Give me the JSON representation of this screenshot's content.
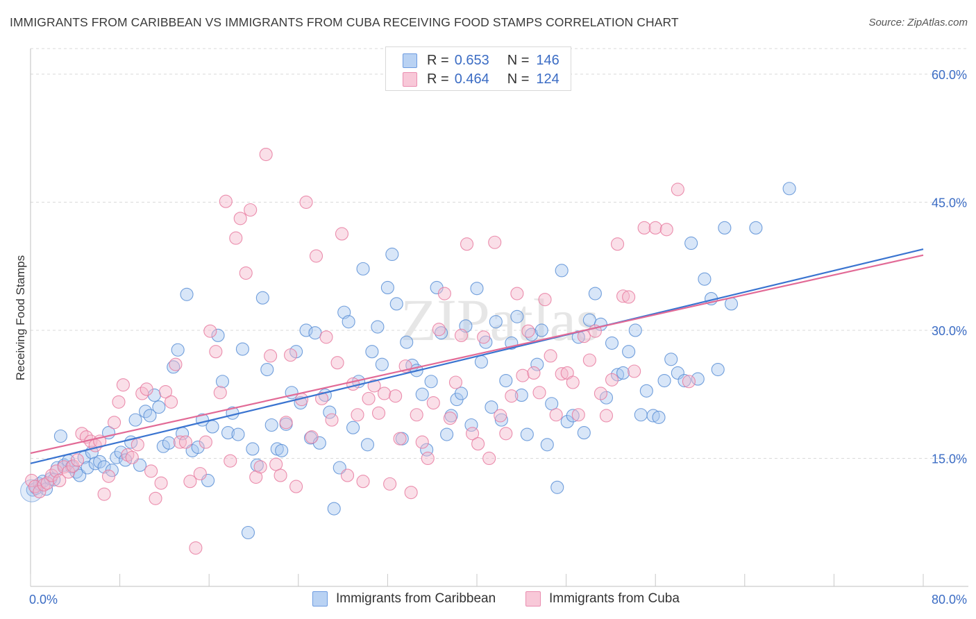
{
  "header": {
    "title": "IMMIGRANTS FROM CARIBBEAN VS IMMIGRANTS FROM CUBA RECEIVING FOOD STAMPS CORRELATION CHART",
    "source": "Source: ZipAtlas.com"
  },
  "legend": {
    "rows": [
      {
        "r_label": "R =",
        "r_value": "0.653",
        "n_label": "N =",
        "n_value": "146"
      },
      {
        "r_label": "R =",
        "r_value": "0.464",
        "n_label": "N =",
        "n_value": "124"
      }
    ]
  },
  "watermark": "ZIPatlas",
  "chart_data": {
    "type": "scatter",
    "title": "IMMIGRANTS FROM CARIBBEAN VS IMMIGRANTS FROM CUBA RECEIVING FOOD STAMPS CORRELATION CHART",
    "xlabel": "",
    "ylabel": "Receiving Food Stamps",
    "xlim": [
      0,
      80
    ],
    "ylim": [
      0,
      63
    ],
    "x_tick_labels": [
      "0.0%",
      "80.0%"
    ],
    "y_ticks": [
      15,
      30,
      45,
      60
    ],
    "y_tick_labels": [
      "15.0%",
      "30.0%",
      "45.0%",
      "60.0%"
    ],
    "grid": true,
    "legend_position": "top-center",
    "colors": {
      "caribbean_fill": "#a8c8f0",
      "caribbean_stroke": "#5b8fd6",
      "caribbean_line": "#3a74d0",
      "cuba_fill": "#f5b8cc",
      "cuba_stroke": "#e87ba0",
      "cuba_line": "#e26a96",
      "tick_label": "#3b6cc4"
    },
    "series": [
      {
        "name": "Immigrants from Caribbean",
        "r": 0.653,
        "n": 146,
        "trend": {
          "x0": 0,
          "y0": 14.4,
          "x1": 80,
          "y1": 39.5
        },
        "points": [
          [
            0.2,
            11.3
          ],
          [
            0.5,
            11.5
          ],
          [
            0.8,
            12.0
          ],
          [
            1.1,
            12.3
          ],
          [
            1.4,
            11.4
          ],
          [
            1.8,
            12.6
          ],
          [
            2.1,
            12.5
          ],
          [
            2.4,
            13.9
          ],
          [
            2.7,
            17.6
          ],
          [
            3.0,
            14.2
          ],
          [
            3.4,
            14.7
          ],
          [
            3.7,
            14.0
          ],
          [
            4.1,
            13.4
          ],
          [
            4.4,
            13.0
          ],
          [
            4.8,
            15.1
          ],
          [
            5.1,
            13.9
          ],
          [
            5.5,
            15.7
          ],
          [
            5.8,
            14.4
          ],
          [
            6.2,
            14.6
          ],
          [
            6.6,
            14.0
          ],
          [
            7.0,
            18.0
          ],
          [
            7.3,
            13.6
          ],
          [
            7.7,
            15.1
          ],
          [
            8.1,
            15.7
          ],
          [
            8.5,
            14.8
          ],
          [
            9.0,
            16.9
          ],
          [
            9.4,
            19.5
          ],
          [
            9.8,
            14.2
          ],
          [
            10.3,
            20.5
          ],
          [
            10.7,
            20.0
          ],
          [
            11.1,
            22.4
          ],
          [
            11.5,
            21.0
          ],
          [
            11.9,
            16.4
          ],
          [
            12.4,
            16.8
          ],
          [
            12.8,
            25.7
          ],
          [
            13.2,
            27.7
          ],
          [
            13.6,
            17.9
          ],
          [
            14.0,
            34.2
          ],
          [
            14.5,
            15.9
          ],
          [
            15.0,
            16.3
          ],
          [
            15.4,
            19.5
          ],
          [
            15.9,
            12.4
          ],
          [
            16.3,
            18.7
          ],
          [
            16.8,
            29.4
          ],
          [
            17.2,
            24.0
          ],
          [
            17.7,
            18.0
          ],
          [
            18.1,
            20.3
          ],
          [
            18.6,
            17.8
          ],
          [
            19.0,
            27.8
          ],
          [
            19.5,
            6.3
          ],
          [
            19.9,
            16.1
          ],
          [
            20.3,
            14.2
          ],
          [
            20.8,
            33.8
          ],
          [
            21.2,
            25.4
          ],
          [
            21.6,
            18.9
          ],
          [
            22.1,
            16.1
          ],
          [
            22.5,
            15.9
          ],
          [
            22.9,
            19.0
          ],
          [
            23.4,
            22.7
          ],
          [
            23.8,
            27.5
          ],
          [
            24.2,
            21.5
          ],
          [
            24.7,
            30.0
          ],
          [
            25.1,
            17.4
          ],
          [
            25.5,
            29.7
          ],
          [
            25.9,
            16.8
          ],
          [
            26.4,
            22.4
          ],
          [
            26.8,
            20.4
          ],
          [
            27.2,
            9.1
          ],
          [
            27.7,
            13.9
          ],
          [
            28.1,
            32.1
          ],
          [
            28.5,
            31.0
          ],
          [
            28.9,
            18.6
          ],
          [
            29.4,
            24.0
          ],
          [
            29.8,
            37.2
          ],
          [
            30.2,
            16.6
          ],
          [
            30.6,
            27.5
          ],
          [
            31.1,
            30.4
          ],
          [
            31.5,
            26.0
          ],
          [
            32.0,
            35.0
          ],
          [
            32.4,
            38.9
          ],
          [
            32.8,
            33.1
          ],
          [
            33.3,
            17.3
          ],
          [
            33.7,
            28.6
          ],
          [
            34.2,
            25.9
          ],
          [
            34.6,
            25.3
          ],
          [
            35.1,
            22.5
          ],
          [
            35.5,
            16.0
          ],
          [
            35.9,
            24.0
          ],
          [
            36.4,
            35.0
          ],
          [
            36.8,
            29.7
          ],
          [
            37.3,
            17.8
          ],
          [
            37.7,
            20.0
          ],
          [
            38.2,
            21.9
          ],
          [
            38.6,
            22.6
          ],
          [
            39.0,
            30.5
          ],
          [
            39.5,
            18.9
          ],
          [
            40.0,
            34.9
          ],
          [
            40.4,
            26.3
          ],
          [
            40.8,
            28.6
          ],
          [
            41.3,
            21.0
          ],
          [
            41.7,
            31.0
          ],
          [
            42.2,
            19.5
          ],
          [
            42.6,
            24.1
          ],
          [
            43.1,
            28.5
          ],
          [
            43.6,
            31.6
          ],
          [
            44.0,
            22.4
          ],
          [
            44.5,
            17.8
          ],
          [
            44.9,
            29.5
          ],
          [
            45.4,
            26.0
          ],
          [
            45.8,
            30.0
          ],
          [
            46.3,
            16.6
          ],
          [
            46.7,
            21.4
          ],
          [
            47.2,
            11.6
          ],
          [
            47.6,
            37.0
          ],
          [
            48.1,
            19.3
          ],
          [
            48.6,
            20.0
          ],
          [
            49.1,
            29.2
          ],
          [
            49.6,
            18.0
          ],
          [
            50.1,
            31.2
          ],
          [
            50.6,
            34.3
          ],
          [
            51.1,
            30.7
          ],
          [
            51.6,
            22.1
          ],
          [
            52.1,
            28.5
          ],
          [
            52.6,
            24.8
          ],
          [
            53.1,
            25.0
          ],
          [
            53.6,
            27.5
          ],
          [
            54.2,
            30.0
          ],
          [
            54.7,
            20.1
          ],
          [
            55.2,
            22.9
          ],
          [
            55.8,
            20.0
          ],
          [
            56.3,
            19.8
          ],
          [
            56.8,
            24.1
          ],
          [
            57.4,
            26.6
          ],
          [
            58.0,
            25.0
          ],
          [
            58.6,
            24.1
          ],
          [
            59.2,
            40.2
          ],
          [
            59.8,
            24.3
          ],
          [
            60.4,
            36.0
          ],
          [
            61.0,
            33.7
          ],
          [
            61.6,
            25.4
          ],
          [
            62.2,
            42.0
          ],
          [
            62.8,
            33.1
          ],
          [
            65.0,
            42.0
          ],
          [
            68.0,
            46.6
          ]
        ]
      },
      {
        "name": "Immigrants from Cuba",
        "r": 0.464,
        "n": 124,
        "trend": {
          "x0": 0,
          "y0": 15.6,
          "x1": 80,
          "y1": 38.8
        },
        "points": [
          [
            0.1,
            12.4
          ],
          [
            0.4,
            11.7
          ],
          [
            0.8,
            11.1
          ],
          [
            1.2,
            11.9
          ],
          [
            1.5,
            12.1
          ],
          [
            1.9,
            13.0
          ],
          [
            2.3,
            13.5
          ],
          [
            2.6,
            12.4
          ],
          [
            3.0,
            14.0
          ],
          [
            3.4,
            13.4
          ],
          [
            3.8,
            14.1
          ],
          [
            4.2,
            14.8
          ],
          [
            4.6,
            17.9
          ],
          [
            5.0,
            17.5
          ],
          [
            5.4,
            17.0
          ],
          [
            5.8,
            16.5
          ],
          [
            6.2,
            17.0
          ],
          [
            6.6,
            10.8
          ],
          [
            7.0,
            12.9
          ],
          [
            7.5,
            19.2
          ],
          [
            7.9,
            21.6
          ],
          [
            8.3,
            23.6
          ],
          [
            8.7,
            15.4
          ],
          [
            9.1,
            15.1
          ],
          [
            9.6,
            16.6
          ],
          [
            10.0,
            22.6
          ],
          [
            10.4,
            23.1
          ],
          [
            10.8,
            13.5
          ],
          [
            11.2,
            10.3
          ],
          [
            11.7,
            12.1
          ],
          [
            12.1,
            22.8
          ],
          [
            12.6,
            21.6
          ],
          [
            13.0,
            26.0
          ],
          [
            13.4,
            16.9
          ],
          [
            13.9,
            16.9
          ],
          [
            14.3,
            12.3
          ],
          [
            14.8,
            4.5
          ],
          [
            15.2,
            13.2
          ],
          [
            15.7,
            16.9
          ],
          [
            16.1,
            29.9
          ],
          [
            16.6,
            27.5
          ],
          [
            17.0,
            22.7
          ],
          [
            17.5,
            45.1
          ],
          [
            17.9,
            14.7
          ],
          [
            18.4,
            40.8
          ],
          [
            18.8,
            43.1
          ],
          [
            19.3,
            36.7
          ],
          [
            19.7,
            44.1
          ],
          [
            20.2,
            12.8
          ],
          [
            20.6,
            14.0
          ],
          [
            21.1,
            50.6
          ],
          [
            21.5,
            27.0
          ],
          [
            22.0,
            14.3
          ],
          [
            22.4,
            13.0
          ],
          [
            22.9,
            19.2
          ],
          [
            23.3,
            27.1
          ],
          [
            23.8,
            11.7
          ],
          [
            24.3,
            21.9
          ],
          [
            24.7,
            45.0
          ],
          [
            25.2,
            17.5
          ],
          [
            25.6,
            38.7
          ],
          [
            26.1,
            22.0
          ],
          [
            26.5,
            29.2
          ],
          [
            27.0,
            19.5
          ],
          [
            27.5,
            26.2
          ],
          [
            27.9,
            41.3
          ],
          [
            28.4,
            13.0
          ],
          [
            28.9,
            23.7
          ],
          [
            29.3,
            20.1
          ],
          [
            29.8,
            12.3
          ],
          [
            30.3,
            22.0
          ],
          [
            30.8,
            23.5
          ],
          [
            31.2,
            20.3
          ],
          [
            31.7,
            22.6
          ],
          [
            32.2,
            12.0
          ],
          [
            32.7,
            22.3
          ],
          [
            33.1,
            17.3
          ],
          [
            33.6,
            25.8
          ],
          [
            34.1,
            11.0
          ],
          [
            34.6,
            20.1
          ],
          [
            35.1,
            16.9
          ],
          [
            35.6,
            15.0
          ],
          [
            36.1,
            21.5
          ],
          [
            36.6,
            30.1
          ],
          [
            37.1,
            34.3
          ],
          [
            37.6,
            19.7
          ],
          [
            38.1,
            23.9
          ],
          [
            38.6,
            29.4
          ],
          [
            39.1,
            40.1
          ],
          [
            39.6,
            17.9
          ],
          [
            40.1,
            16.7
          ],
          [
            40.6,
            29.2
          ],
          [
            41.1,
            15.0
          ],
          [
            41.6,
            40.3
          ],
          [
            42.1,
            20.0
          ],
          [
            42.6,
            17.9
          ],
          [
            43.1,
            22.3
          ],
          [
            43.6,
            34.3
          ],
          [
            44.1,
            24.7
          ],
          [
            44.6,
            29.9
          ],
          [
            45.1,
            25.0
          ],
          [
            45.6,
            22.7
          ],
          [
            46.1,
            33.6
          ],
          [
            46.6,
            27.0
          ],
          [
            47.1,
            20.1
          ],
          [
            47.6,
            24.9
          ],
          [
            48.1,
            25.0
          ],
          [
            48.6,
            23.9
          ],
          [
            49.1,
            20.1
          ],
          [
            49.6,
            29.3
          ],
          [
            50.1,
            26.5
          ],
          [
            50.6,
            29.9
          ],
          [
            51.1,
            22.6
          ],
          [
            51.6,
            20.0
          ],
          [
            52.1,
            24.2
          ],
          [
            52.6,
            40.1
          ],
          [
            53.1,
            34.0
          ],
          [
            53.6,
            33.9
          ],
          [
            54.1,
            25.2
          ],
          [
            55.0,
            42.0
          ],
          [
            56.0,
            42.0
          ],
          [
            57.0,
            41.8
          ],
          [
            58.0,
            46.5
          ],
          [
            59.0,
            24.0
          ]
        ]
      }
    ]
  },
  "bottom_legend": {
    "items": [
      {
        "label": "Immigrants from Caribbean"
      },
      {
        "label": "Immigrants from Cuba"
      }
    ]
  }
}
